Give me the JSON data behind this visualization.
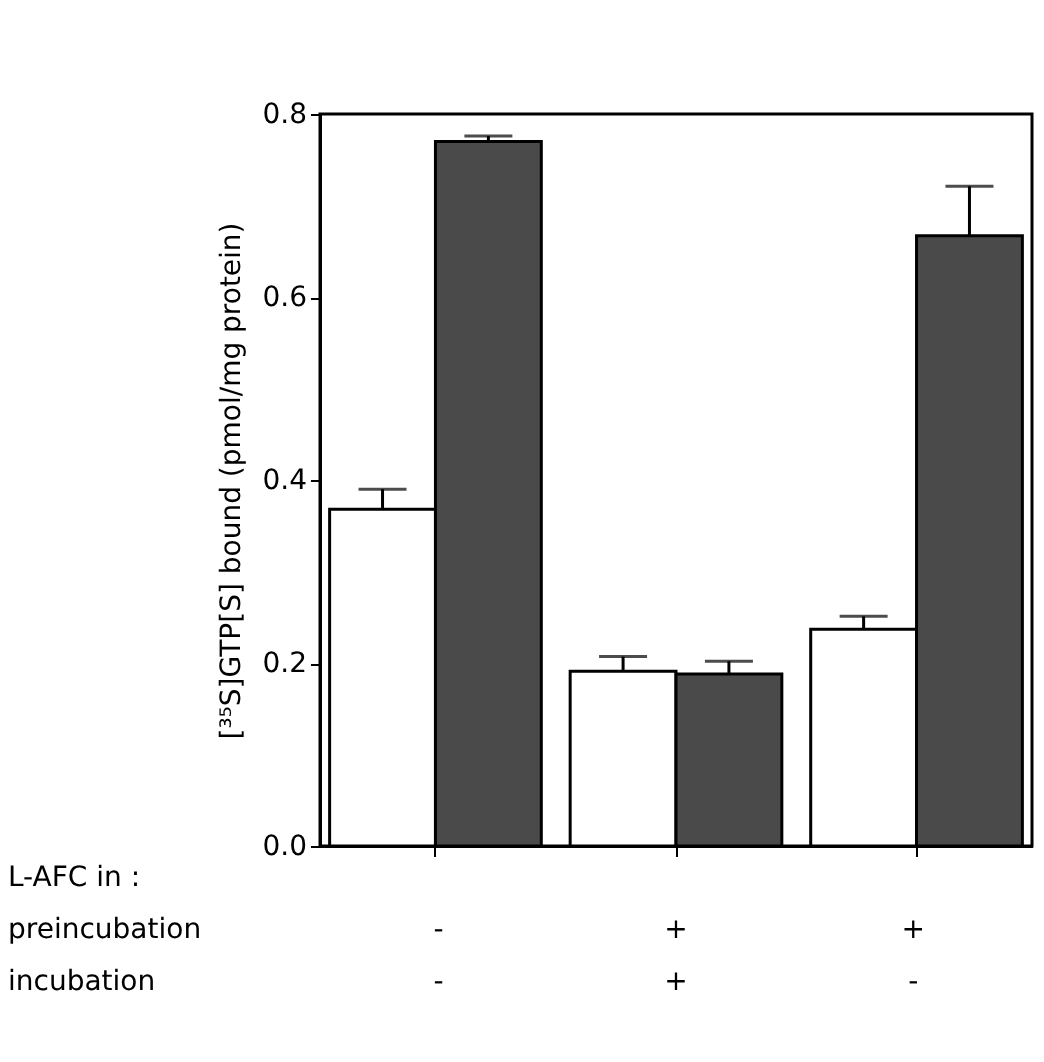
{
  "chart_data": {
    "type": "bar",
    "ylabel": "[³⁵S]GTP[S] bound (pmol/mg protein)",
    "categories": [
      null,
      null,
      null
    ],
    "series": [
      {
        "color": "#ffffff",
        "values": [
          0.368,
          0.191,
          0.237
        ],
        "errors": [
          [
            0.368,
            0.39
          ],
          [
            0.191,
            0.207
          ],
          [
            0.237,
            0.251
          ]
        ]
      },
      {
        "color": "#4a4a4a",
        "values": [
          0.77,
          0.188,
          0.667
        ],
        "errors": [
          [
            0.77,
            0.776
          ],
          [
            0.188,
            0.202
          ],
          [
            0.667,
            0.721
          ]
        ]
      }
    ],
    "ylim": [
      0,
      0.8
    ],
    "yticks": [
      {
        "value": 0,
        "label": "0.0"
      },
      {
        "value": 0.2,
        "label": "0.2"
      },
      {
        "value": 0.4,
        "label": "0.4"
      },
      {
        "value": 0.6,
        "label": "0.6"
      },
      {
        "value": 0.8,
        "label": "0.8"
      }
    ],
    "grid": false,
    "legend": false,
    "annotations": [
      "L-AFC in :",
      "preincubation",
      "-",
      "+",
      "+",
      "incubation",
      "-",
      "+",
      "-"
    ]
  }
}
